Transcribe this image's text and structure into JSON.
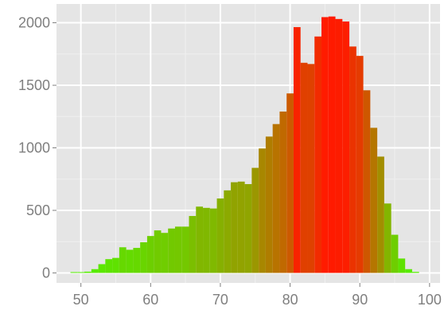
{
  "chart_data": {
    "type": "bar",
    "title": "",
    "xlabel": "",
    "ylabel": "",
    "xlim": [
      46.5,
      101.5
    ],
    "ylim": [
      -80,
      2150
    ],
    "grid": true,
    "legend": "none",
    "x_ticks": [
      50,
      60,
      70,
      80,
      90,
      100
    ],
    "y_ticks": [
      0,
      500,
      1000,
      1500,
      2000
    ],
    "colors": {
      "panel": "#e5e5e5",
      "grid_major": "#ffffff",
      "grid_minor": "#f0f0f0",
      "tick_label": "#7f7f7f",
      "low": "#55ee00",
      "high": "#ff1a00"
    },
    "bins": [
      {
        "x": 49,
        "y": 2
      },
      {
        "x": 50,
        "y": 5
      },
      {
        "x": 51,
        "y": 10
      },
      {
        "x": 52,
        "y": 30
      },
      {
        "x": 53,
        "y": 70
      },
      {
        "x": 54,
        "y": 110
      },
      {
        "x": 55,
        "y": 120
      },
      {
        "x": 56,
        "y": 205
      },
      {
        "x": 57,
        "y": 185
      },
      {
        "x": 58,
        "y": 200
      },
      {
        "x": 59,
        "y": 245
      },
      {
        "x": 60,
        "y": 295
      },
      {
        "x": 61,
        "y": 340
      },
      {
        "x": 62,
        "y": 320
      },
      {
        "x": 63,
        "y": 355
      },
      {
        "x": 64,
        "y": 370
      },
      {
        "x": 65,
        "y": 370
      },
      {
        "x": 66,
        "y": 455
      },
      {
        "x": 67,
        "y": 530
      },
      {
        "x": 68,
        "y": 520
      },
      {
        "x": 69,
        "y": 515
      },
      {
        "x": 70,
        "y": 595
      },
      {
        "x": 71,
        "y": 660
      },
      {
        "x": 72,
        "y": 725
      },
      {
        "x": 73,
        "y": 730
      },
      {
        "x": 74,
        "y": 710
      },
      {
        "x": 75,
        "y": 840
      },
      {
        "x": 76,
        "y": 995
      },
      {
        "x": 77,
        "y": 1090
      },
      {
        "x": 78,
        "y": 1190
      },
      {
        "x": 79,
        "y": 1290
      },
      {
        "x": 80,
        "y": 1435
      },
      {
        "x": 81,
        "y": 1965
      },
      {
        "x": 82,
        "y": 1680
      },
      {
        "x": 83,
        "y": 1670
      },
      {
        "x": 84,
        "y": 1890
      },
      {
        "x": 85,
        "y": 2045
      },
      {
        "x": 86,
        "y": 2050
      },
      {
        "x": 87,
        "y": 2030
      },
      {
        "x": 88,
        "y": 2010
      },
      {
        "x": 89,
        "y": 1810
      },
      {
        "x": 90,
        "y": 1735
      },
      {
        "x": 91,
        "y": 1460
      },
      {
        "x": 92,
        "y": 1160
      },
      {
        "x": 93,
        "y": 930
      },
      {
        "x": 94,
        "y": 555
      },
      {
        "x": 95,
        "y": 305
      },
      {
        "x": 96,
        "y": 115
      },
      {
        "x": 97,
        "y": 30
      },
      {
        "x": 98,
        "y": 8
      }
    ]
  }
}
